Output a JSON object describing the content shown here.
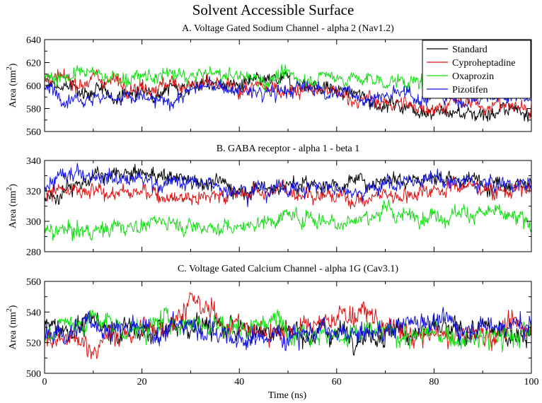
{
  "title": "Solvent Accessible Surface",
  "xlabel": "Time (ns)",
  "legend": {
    "placement": "top-right of panel A",
    "entries": [
      {
        "name": "Standard",
        "color": "#000000"
      },
      {
        "name": "Cyproheptadine",
        "color": "#dd1111"
      },
      {
        "name": "Oxaprozin",
        "color": "#11dd11"
      },
      {
        "name": "Pizotifen",
        "color": "#1111dd"
      }
    ]
  },
  "chart_data": [
    {
      "type": "line",
      "title": "A. Voltage Gated Sodium Channel - alpha 2 (Nav1.2)",
      "ylabel": "Area (nm",
      "ylabel_sup": "2",
      "ylabel_end": ")",
      "xlim": [
        0,
        100
      ],
      "ylim": [
        560,
        640
      ],
      "yticks": [
        560,
        580,
        600,
        620,
        640
      ],
      "xticks": [
        0,
        20,
        40,
        60,
        80,
        100
      ],
      "show_x_tick_labels": false,
      "noise": 4.5,
      "series": [
        {
          "name": "Standard",
          "x": [
            0,
            5,
            10,
            15,
            20,
            25,
            30,
            35,
            40,
            45,
            50,
            55,
            60,
            65,
            70,
            75,
            80,
            85,
            90,
            95,
            100
          ],
          "values": [
            602,
            598,
            594,
            592,
            594,
            598,
            600,
            601,
            600,
            602,
            604,
            600,
            596,
            590,
            584,
            582,
            578,
            576,
            576,
            578,
            580
          ]
        },
        {
          "name": "Cyproheptadine",
          "x": [
            0,
            5,
            10,
            15,
            20,
            25,
            30,
            35,
            40,
            45,
            50,
            55,
            60,
            65,
            70,
            75,
            80,
            85,
            90,
            95,
            100
          ],
          "values": [
            605,
            603,
            606,
            604,
            600,
            600,
            602,
            598,
            596,
            597,
            598,
            596,
            592,
            588,
            585,
            582,
            582,
            584,
            584,
            582,
            580
          ]
        },
        {
          "name": "Oxaprozin",
          "x": [
            0,
            5,
            10,
            15,
            20,
            25,
            30,
            35,
            40,
            45,
            50,
            55,
            60,
            65,
            70,
            75,
            80,
            85,
            90,
            95,
            100
          ],
          "values": [
            608,
            609,
            610,
            607,
            606,
            609,
            608,
            610,
            608,
            606,
            607,
            607,
            608,
            605,
            604,
            603,
            602,
            600,
            598,
            597,
            596
          ]
        },
        {
          "name": "Pizotifen",
          "x": [
            0,
            5,
            10,
            15,
            20,
            25,
            30,
            35,
            40,
            45,
            50,
            55,
            60,
            65,
            70,
            75,
            80,
            85,
            90,
            95,
            100
          ],
          "values": [
            596,
            592,
            590,
            590,
            588,
            584,
            596,
            600,
            596,
            592,
            596,
            598,
            594,
            590,
            590,
            592,
            590,
            588,
            590,
            590,
            590
          ]
        }
      ]
    },
    {
      "type": "line",
      "title": "B. GABA receptor - alpha 1 - beta 1",
      "ylabel": "Area (nm",
      "ylabel_sup": "2",
      "ylabel_end": ")",
      "xlim": [
        0,
        100
      ],
      "ylim": [
        280,
        340
      ],
      "yticks": [
        280,
        300,
        320,
        340
      ],
      "xticks": [
        0,
        20,
        40,
        60,
        80,
        100
      ],
      "show_x_tick_labels": false,
      "noise": 3.6,
      "series": [
        {
          "name": "Standard",
          "x": [
            0,
            5,
            10,
            15,
            20,
            25,
            30,
            35,
            40,
            45,
            50,
            55,
            60,
            65,
            70,
            75,
            80,
            85,
            90,
            95,
            100
          ],
          "values": [
            312,
            324,
            328,
            330,
            331,
            330,
            328,
            325,
            322,
            323,
            323,
            324,
            325,
            326,
            328,
            330,
            328,
            327,
            326,
            326,
            326
          ]
        },
        {
          "name": "Cyproheptadine",
          "x": [
            0,
            5,
            10,
            15,
            20,
            25,
            30,
            35,
            40,
            45,
            50,
            55,
            60,
            65,
            70,
            75,
            80,
            85,
            90,
            95,
            100
          ],
          "values": [
            322,
            318,
            318,
            320,
            318,
            318,
            316,
            317,
            318,
            320,
            320,
            319,
            316,
            314,
            318,
            318,
            322,
            324,
            322,
            320,
            322
          ]
        },
        {
          "name": "Oxaprozin",
          "x": [
            0,
            5,
            10,
            15,
            20,
            25,
            30,
            35,
            40,
            45,
            50,
            55,
            60,
            65,
            70,
            75,
            80,
            85,
            90,
            95,
            100
          ],
          "values": [
            292,
            294,
            294,
            296,
            298,
            300,
            298,
            296,
            296,
            300,
            304,
            302,
            300,
            302,
            306,
            304,
            304,
            306,
            306,
            302,
            298
          ]
        },
        {
          "name": "Pizotifen",
          "x": [
            0,
            5,
            10,
            15,
            20,
            25,
            30,
            35,
            40,
            45,
            50,
            55,
            60,
            65,
            70,
            75,
            80,
            85,
            90,
            95,
            100
          ],
          "values": [
            322,
            330,
            333,
            329,
            327,
            326,
            325,
            323,
            322,
            321,
            322,
            322,
            322,
            321,
            324,
            326,
            327,
            326,
            325,
            324,
            324
          ]
        }
      ]
    },
    {
      "type": "line",
      "title": "C. Voltage Gated Calcium Channel - alpha 1G (Cav3.1)",
      "ylabel": "Area (nm",
      "ylabel_sup": "2",
      "ylabel_end": ")",
      "xlim": [
        0,
        100
      ],
      "ylim": [
        500,
        560
      ],
      "yticks": [
        500,
        520,
        540,
        560
      ],
      "xticks": [
        0,
        20,
        40,
        60,
        80,
        100
      ],
      "show_x_tick_labels": true,
      "noise": 5.0,
      "series": [
        {
          "name": "Standard",
          "x": [
            0,
            5,
            10,
            15,
            20,
            25,
            30,
            35,
            40,
            45,
            50,
            55,
            60,
            65,
            70,
            75,
            80,
            85,
            90,
            95,
            100
          ],
          "values": [
            528,
            530,
            532,
            530,
            528,
            530,
            532,
            530,
            529,
            528,
            528,
            527,
            527,
            527,
            527,
            527,
            527,
            527,
            527,
            527,
            527
          ]
        },
        {
          "name": "Cyproheptadine",
          "x": [
            0,
            5,
            10,
            15,
            20,
            25,
            30,
            35,
            40,
            45,
            50,
            55,
            60,
            65,
            70,
            75,
            80,
            85,
            90,
            95,
            100
          ],
          "values": [
            522,
            520,
            518,
            524,
            528,
            532,
            546,
            538,
            530,
            526,
            530,
            528,
            538,
            540,
            530,
            524,
            524,
            524,
            526,
            528,
            532
          ]
        },
        {
          "name": "Oxaprozin",
          "x": [
            0,
            5,
            10,
            15,
            20,
            25,
            30,
            35,
            40,
            45,
            50,
            55,
            60,
            65,
            70,
            75,
            80,
            85,
            90,
            95,
            100
          ],
          "values": [
            528,
            532,
            536,
            530,
            528,
            534,
            534,
            532,
            530,
            534,
            532,
            528,
            524,
            526,
            526,
            524,
            526,
            522,
            522,
            524,
            526
          ]
        },
        {
          "name": "Pizotifen",
          "x": [
            0,
            5,
            10,
            15,
            20,
            25,
            30,
            35,
            40,
            45,
            50,
            55,
            60,
            65,
            70,
            75,
            80,
            85,
            90,
            95,
            100
          ],
          "values": [
            526,
            528,
            532,
            530,
            526,
            530,
            532,
            528,
            520,
            524,
            526,
            528,
            524,
            524,
            528,
            534,
            536,
            530,
            532,
            532,
            530
          ]
        }
      ]
    }
  ]
}
